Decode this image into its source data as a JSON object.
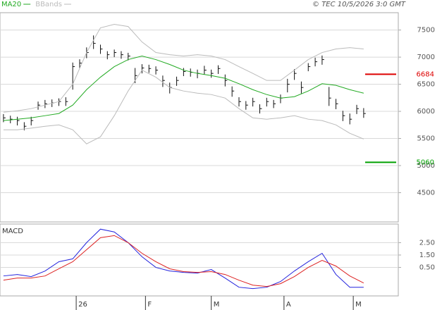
{
  "chart_data": [
    {
      "type": "ohlc",
      "source": "© TEC 10/5/2026 3:0 GMT",
      "color": "#111111",
      "x": [
        0,
        2,
        4,
        6,
        8,
        10,
        12,
        14,
        16,
        18,
        20,
        22,
        24,
        26,
        28,
        30,
        32,
        34,
        36,
        38,
        40,
        42,
        44,
        46,
        48,
        50,
        52,
        54,
        56,
        58,
        60,
        62,
        64,
        66,
        68,
        70,
        72,
        74,
        76,
        78,
        80,
        82,
        84,
        86,
        88,
        90,
        92,
        94,
        96,
        98,
        100,
        102,
        104
      ],
      "high": [
        5950,
        5920,
        5900,
        5800,
        5900,
        6180,
        6210,
        6220,
        6240,
        6260,
        6900,
        6960,
        7180,
        7400,
        7230,
        7110,
        7140,
        7110,
        7080,
        6800,
        6870,
        6860,
        6830,
        6660,
        6530,
        6640,
        6800,
        6790,
        6770,
        6840,
        6770,
        6850,
        6680,
        6460,
        6260,
        6190,
        6250,
        6130,
        6250,
        6210,
        6310,
        6600,
        6780,
        6550,
        6890,
        6990,
        7030,
        6450,
        6230,
        6010,
        5960,
        6120,
        6060
      ],
      "low": [
        5800,
        5780,
        5740,
        5650,
        5740,
        6030,
        6060,
        6080,
        6100,
        6100,
        6400,
        6800,
        6980,
        7150,
        7060,
        6960,
        7000,
        6970,
        6940,
        6520,
        6700,
        6710,
        6680,
        6450,
        6330,
        6470,
        6650,
        6640,
        6610,
        6680,
        6620,
        6690,
        6460,
        6270,
        6090,
        6030,
        6090,
        5960,
        6090,
        6060,
        6150,
        6350,
        6580,
        6330,
        6740,
        6830,
        6860,
        6100,
        6040,
        5820,
        5760,
        5950,
        5880
      ],
      "close": [
        5880,
        5855,
        5830,
        5725,
        5830,
        6115,
        6140,
        6155,
        6180,
        6180,
        6825,
        6890,
        7085,
        7255,
        7150,
        7045,
        7085,
        7045,
        7020,
        6660,
        6800,
        6790,
        6760,
        6570,
        6440,
        6570,
        6735,
        6720,
        6700,
        6760,
        6700,
        6790,
        6570,
        6375,
        6180,
        6115,
        6180,
        6050,
        6180,
        6140,
        6245,
        6500,
        6700,
        6440,
        6825,
        6915,
        6955,
        6245,
        6140,
        5920,
        5855,
        6050,
        5960
      ],
      "series": [
        {
          "name": "MA20",
          "color": "#22aa22",
          "x": [
            0,
            4,
            8,
            12,
            16,
            20,
            24,
            28,
            32,
            36,
            40,
            44,
            48,
            52,
            56,
            60,
            64,
            68,
            72,
            76,
            80,
            84,
            88,
            92,
            96,
            100,
            104
          ],
          "values": [
            5830,
            5855,
            5880,
            5920,
            5960,
            6115,
            6400,
            6630,
            6825,
            6955,
            7020,
            6955,
            6865,
            6760,
            6700,
            6660,
            6610,
            6510,
            6400,
            6310,
            6245,
            6270,
            6375,
            6510,
            6480,
            6400,
            6335
          ]
        },
        {
          "name": "BBands",
          "color": "#bbbbbb",
          "x": [
            0,
            4,
            8,
            12,
            16,
            20,
            24,
            28,
            32,
            36,
            40,
            44,
            48,
            52,
            56,
            60,
            64,
            68,
            72,
            76,
            80,
            84,
            88,
            92,
            96,
            100,
            104
          ],
          "upper": [
            5985,
            6010,
            6050,
            6115,
            6180,
            6500,
            7085,
            7540,
            7605,
            7565,
            7280,
            7085,
            7045,
            7020,
            7045,
            7020,
            6955,
            6825,
            6700,
            6570,
            6570,
            6760,
            6955,
            7085,
            7150,
            7175,
            7150
          ],
          "lower": [
            5660,
            5660,
            5690,
            5725,
            5750,
            5660,
            5400,
            5530,
            5920,
            6375,
            6760,
            6630,
            6440,
            6375,
            6335,
            6310,
            6245,
            6050,
            5880,
            5855,
            5880,
            5920,
            5855,
            5830,
            5750,
            5595,
            5490
          ]
        }
      ],
      "levels": [
        {
          "value": 6684,
          "color": "#dd0000"
        },
        {
          "value": 5060,
          "color": "#00a000"
        }
      ],
      "xlim": [
        -1,
        114
      ],
      "ylim": [
        3960,
        7820
      ],
      "yticks": [
        4500,
        5000,
        5500,
        6000,
        6500,
        7000,
        7500
      ],
      "grid": true
    },
    {
      "type": "line",
      "title": "MACD",
      "xlim": [
        -1,
        114
      ],
      "ylim": [
        -1.8,
        4.0
      ],
      "yticks": [
        {
          "value": 0.5,
          "label": "0.50"
        },
        {
          "value": 1.5,
          "label": "1.50"
        },
        {
          "value": 2.5,
          "label": "2.50"
        }
      ],
      "xticks": [
        {
          "value": 21,
          "label": "26"
        },
        {
          "value": 41,
          "label": "F"
        },
        {
          "value": 60,
          "label": "M"
        },
        {
          "value": 81,
          "label": "A"
        },
        {
          "value": 101,
          "label": "M"
        }
      ],
      "grid": true,
      "series": [
        {
          "color": "#2222dd",
          "x": [
            0,
            4,
            8,
            12,
            16,
            20,
            24,
            28,
            32,
            36,
            40,
            44,
            48,
            52,
            56,
            60,
            64,
            68,
            72,
            76,
            80,
            84,
            88,
            92,
            96,
            100,
            104
          ],
          "values": [
            -0.19,
            -0.07,
            -0.24,
            0.21,
            0.96,
            1.19,
            2.5,
            3.59,
            3.36,
            2.5,
            1.36,
            0.5,
            0.21,
            0.1,
            0.04,
            0.33,
            -0.36,
            -1.1,
            -1.21,
            -1.1,
            -0.64,
            0.21,
            0.96,
            1.64,
            -0.07,
            -1.1,
            -1.1
          ]
        },
        {
          "color": "#dd2222",
          "x": [
            0,
            4,
            8,
            12,
            16,
            20,
            24,
            28,
            32,
            36,
            40,
            44,
            48,
            52,
            56,
            60,
            64,
            68,
            72,
            76,
            80,
            84,
            88,
            92,
            96,
            100,
            104
          ],
          "values": [
            -0.53,
            -0.36,
            -0.36,
            -0.19,
            0.39,
            0.96,
            1.93,
            2.9,
            3.07,
            2.5,
            1.64,
            0.96,
            0.39,
            0.16,
            0.1,
            0.16,
            -0.07,
            -0.53,
            -0.93,
            -1.04,
            -0.81,
            -0.24,
            0.5,
            1.07,
            0.61,
            -0.19,
            -0.76
          ]
        }
      ]
    }
  ]
}
